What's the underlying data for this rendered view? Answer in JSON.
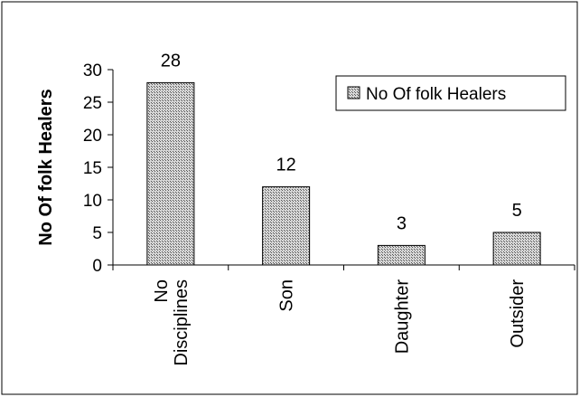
{
  "chart_data": {
    "type": "bar",
    "categories": [
      [
        "No",
        "Disciplines"
      ],
      [
        "Son"
      ],
      [
        "Daughter"
      ],
      [
        "Outsider"
      ]
    ],
    "series": [
      {
        "name": "No Of folk Healers",
        "values": [
          28,
          12,
          3,
          5
        ]
      }
    ],
    "xlabel": "",
    "ylabel": "No Of folk Healers",
    "ylim": [
      0,
      30
    ],
    "yticks": [
      0,
      5,
      10,
      15,
      20,
      25,
      30
    ],
    "data_labels": [
      "28",
      "12",
      "3",
      "5"
    ],
    "grid": false,
    "legend": {
      "position": "top-right",
      "label": "No Of folk Healers"
    },
    "colors": {
      "bar_fill": "#bdbdbd",
      "bar_stroke": "#000000",
      "frame": "#000000"
    }
  }
}
